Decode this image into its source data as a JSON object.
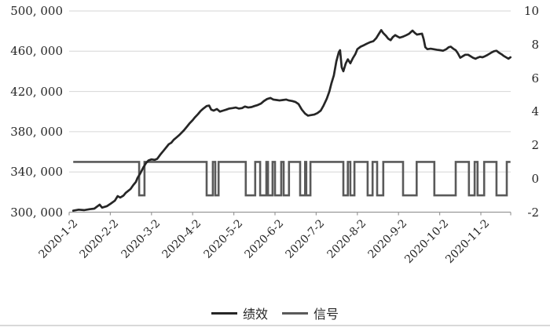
{
  "chart_data": {
    "type": "line",
    "title": "",
    "x_unit": "months since 2020-1-2",
    "x_tick_labels": [
      "2020-1-2",
      "2020-2-2",
      "2020-3-2",
      "2020-4-2",
      "2020-5-2",
      "2020-6-2",
      "2020-7-2",
      "2020-8-2",
      "2020-9-2",
      "2020-10-2",
      "2020-11-2"
    ],
    "x_t_end": 10.72,
    "y_left_axis": {
      "min": 300000,
      "max": 500000,
      "step": 40000,
      "tick_labels": [
        "500, 000",
        "460, 000",
        "420, 000",
        "380, 000",
        "340, 000",
        "300, 000"
      ]
    },
    "y_right_axis": {
      "min": -2,
      "max": 10,
      "step": 2,
      "tick_labels": [
        "10",
        "8",
        "6",
        "4",
        "2",
        "0",
        "-2"
      ]
    },
    "grid": "horizontal",
    "legend_position": "bottom",
    "colors": {
      "performance": "#262626",
      "signal": "#5a5a5a",
      "gridline": "#d6d6d6",
      "axis": "#999999"
    },
    "series": [
      {
        "name": "绩效",
        "axis": "left",
        "color": "#262626",
        "points": [
          [
            0.1,
            301500
          ],
          [
            0.23,
            302500
          ],
          [
            0.36,
            302000
          ],
          [
            0.5,
            303000
          ],
          [
            0.61,
            303500
          ],
          [
            0.74,
            307500
          ],
          [
            0.8,
            304500
          ],
          [
            0.92,
            306000
          ],
          [
            1.01,
            308500
          ],
          [
            1.11,
            311500
          ],
          [
            1.18,
            316000
          ],
          [
            1.24,
            314500
          ],
          [
            1.32,
            316500
          ],
          [
            1.37,
            319000
          ],
          [
            1.43,
            321000
          ],
          [
            1.49,
            323000
          ],
          [
            1.56,
            327000
          ],
          [
            1.62,
            330000
          ],
          [
            1.66,
            334000
          ],
          [
            1.72,
            338000
          ],
          [
            1.76,
            341000
          ],
          [
            1.81,
            345000
          ],
          [
            1.87,
            349000
          ],
          [
            1.93,
            351500
          ],
          [
            2.0,
            352500
          ],
          [
            2.08,
            352000
          ],
          [
            2.14,
            353000
          ],
          [
            2.21,
            357000
          ],
          [
            2.29,
            361000
          ],
          [
            2.37,
            365000
          ],
          [
            2.42,
            367500
          ],
          [
            2.48,
            369000
          ],
          [
            2.54,
            372000
          ],
          [
            2.6,
            374000
          ],
          [
            2.67,
            376500
          ],
          [
            2.73,
            379000
          ],
          [
            2.79,
            381500
          ],
          [
            2.86,
            385000
          ],
          [
            2.92,
            388000
          ],
          [
            3.0,
            391500
          ],
          [
            3.05,
            394000
          ],
          [
            3.13,
            397500
          ],
          [
            3.19,
            400500
          ],
          [
            3.26,
            403000
          ],
          [
            3.34,
            405500
          ],
          [
            3.4,
            406000
          ],
          [
            3.45,
            402000
          ],
          [
            3.51,
            401000
          ],
          [
            3.59,
            402500
          ],
          [
            3.66,
            400000
          ],
          [
            3.74,
            401000
          ],
          [
            3.82,
            402000
          ],
          [
            3.89,
            403000
          ],
          [
            3.97,
            403500
          ],
          [
            4.05,
            404000
          ],
          [
            4.12,
            403000
          ],
          [
            4.2,
            403500
          ],
          [
            4.27,
            405000
          ],
          [
            4.35,
            404000
          ],
          [
            4.43,
            404500
          ],
          [
            4.5,
            405500
          ],
          [
            4.58,
            406500
          ],
          [
            4.66,
            408000
          ],
          [
            4.73,
            410500
          ],
          [
            4.81,
            412500
          ],
          [
            4.89,
            413500
          ],
          [
            4.96,
            412000
          ],
          [
            5.04,
            411500
          ],
          [
            5.11,
            411000
          ],
          [
            5.19,
            411500
          ],
          [
            5.27,
            412000
          ],
          [
            5.34,
            411000
          ],
          [
            5.42,
            410500
          ],
          [
            5.5,
            409500
          ],
          [
            5.57,
            407500
          ],
          [
            5.65,
            402000
          ],
          [
            5.73,
            398000
          ],
          [
            5.8,
            396000
          ],
          [
            5.88,
            396500
          ],
          [
            5.95,
            397000
          ],
          [
            6.03,
            398500
          ],
          [
            6.11,
            401000
          ],
          [
            6.18,
            406000
          ],
          [
            6.26,
            413000
          ],
          [
            6.32,
            420000
          ],
          [
            6.37,
            428000
          ],
          [
            6.43,
            436000
          ],
          [
            6.49,
            450000
          ],
          [
            6.55,
            459000
          ],
          [
            6.58,
            461000
          ],
          [
            6.62,
            444000
          ],
          [
            6.66,
            440000
          ],
          [
            6.72,
            448000
          ],
          [
            6.77,
            452000
          ],
          [
            6.83,
            448000
          ],
          [
            6.89,
            453000
          ],
          [
            6.95,
            457000
          ],
          [
            7.0,
            462000
          ],
          [
            7.08,
            464500
          ],
          [
            7.16,
            466000
          ],
          [
            7.23,
            467500
          ],
          [
            7.31,
            469000
          ],
          [
            7.39,
            470000
          ],
          [
            7.46,
            473000
          ],
          [
            7.52,
            477000
          ],
          [
            7.58,
            481000
          ],
          [
            7.63,
            478000
          ],
          [
            7.69,
            475500
          ],
          [
            7.75,
            472500
          ],
          [
            7.81,
            471000
          ],
          [
            7.86,
            474000
          ],
          [
            7.92,
            476000
          ],
          [
            7.98,
            474500
          ],
          [
            8.03,
            473500
          ],
          [
            8.11,
            474500
          ],
          [
            8.19,
            476000
          ],
          [
            8.26,
            477500
          ],
          [
            8.34,
            480500
          ],
          [
            8.4,
            478000
          ],
          [
            8.45,
            476500
          ],
          [
            8.51,
            477000
          ],
          [
            8.57,
            477500
          ],
          [
            8.61,
            472000
          ],
          [
            8.65,
            464000
          ],
          [
            8.7,
            462000
          ],
          [
            8.78,
            462500
          ],
          [
            8.85,
            462000
          ],
          [
            8.93,
            461500
          ],
          [
            9.01,
            461000
          ],
          [
            9.08,
            460500
          ],
          [
            9.16,
            462000
          ],
          [
            9.22,
            464000
          ],
          [
            9.27,
            464500
          ],
          [
            9.33,
            462500
          ],
          [
            9.39,
            461000
          ],
          [
            9.44,
            458000
          ],
          [
            9.5,
            453500
          ],
          [
            9.56,
            455000
          ],
          [
            9.62,
            456500
          ],
          [
            9.69,
            456500
          ],
          [
            9.75,
            455000
          ],
          [
            9.81,
            453500
          ],
          [
            9.87,
            452500
          ],
          [
            9.92,
            453500
          ],
          [
            9.98,
            454500
          ],
          [
            10.04,
            454000
          ],
          [
            10.1,
            455000
          ],
          [
            10.15,
            456000
          ],
          [
            10.21,
            457500
          ],
          [
            10.27,
            459000
          ],
          [
            10.32,
            460000
          ],
          [
            10.38,
            460500
          ],
          [
            10.44,
            458500
          ],
          [
            10.5,
            457000
          ],
          [
            10.55,
            455500
          ],
          [
            10.61,
            454000
          ],
          [
            10.67,
            452500
          ],
          [
            10.72,
            454000
          ]
        ]
      },
      {
        "name": "信号",
        "axis": "right",
        "color": "#5a5a5a",
        "segments": [
          [
            0.1,
            1.7,
            1
          ],
          [
            1.7,
            1.83,
            -1
          ],
          [
            1.83,
            3.34,
            1
          ],
          [
            3.34,
            3.49,
            -1
          ],
          [
            3.49,
            3.55,
            1
          ],
          [
            3.55,
            3.63,
            -1
          ],
          [
            3.63,
            4.29,
            1
          ],
          [
            4.29,
            4.52,
            -1
          ],
          [
            4.52,
            4.64,
            1
          ],
          [
            4.64,
            4.79,
            -1
          ],
          [
            4.79,
            4.83,
            1
          ],
          [
            4.83,
            4.94,
            -1
          ],
          [
            4.94,
            5.0,
            1
          ],
          [
            5.0,
            5.15,
            -1
          ],
          [
            5.15,
            5.21,
            1
          ],
          [
            5.21,
            5.34,
            -1
          ],
          [
            5.34,
            5.61,
            1
          ],
          [
            5.61,
            5.73,
            -1
          ],
          [
            5.73,
            5.76,
            1
          ],
          [
            5.76,
            5.86,
            -1
          ],
          [
            5.86,
            6.66,
            1
          ],
          [
            6.66,
            6.77,
            -1
          ],
          [
            6.77,
            6.83,
            1
          ],
          [
            6.83,
            6.93,
            -1
          ],
          [
            6.93,
            7.25,
            1
          ],
          [
            7.25,
            7.37,
            -1
          ],
          [
            7.37,
            7.48,
            1
          ],
          [
            7.48,
            7.63,
            -1
          ],
          [
            7.63,
            8.11,
            1
          ],
          [
            8.11,
            8.44,
            -1
          ],
          [
            8.44,
            8.87,
            1
          ],
          [
            8.87,
            9.39,
            -1
          ],
          [
            9.39,
            9.71,
            1
          ],
          [
            9.71,
            9.85,
            -1
          ],
          [
            9.85,
            9.92,
            1
          ],
          [
            9.92,
            10.08,
            -1
          ],
          [
            10.08,
            10.38,
            1
          ],
          [
            10.38,
            10.63,
            -1
          ],
          [
            10.63,
            10.72,
            1
          ]
        ]
      }
    ]
  }
}
